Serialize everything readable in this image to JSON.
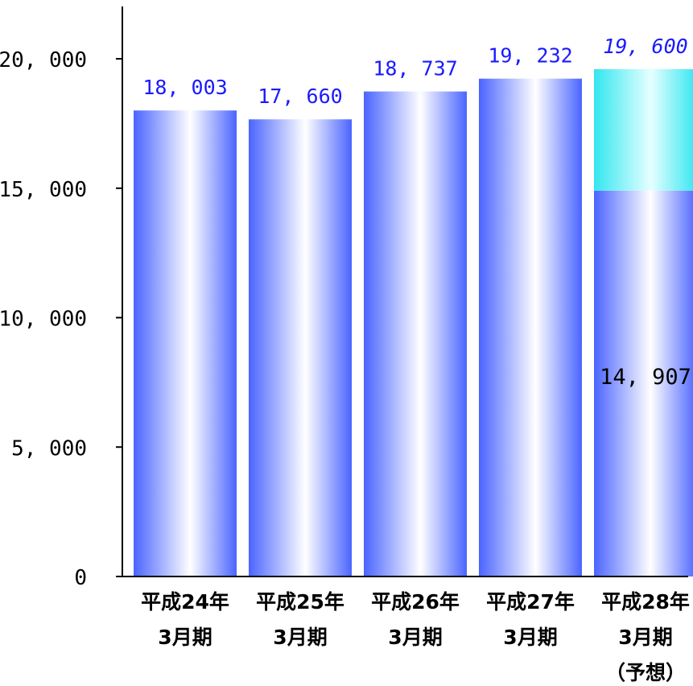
{
  "chart_data": {
    "type": "bar",
    "categories": [
      [
        "平成24年",
        "3月期"
      ],
      [
        "平成25年",
        "3月期"
      ],
      [
        "平成26年",
        "3月期"
      ],
      [
        "平成27年",
        "3月期"
      ],
      [
        "平成28年",
        "3月期",
        "（予想）"
      ]
    ],
    "values": [
      18003,
      17660,
      18737,
      19232,
      19600
    ],
    "value_labels": [
      "18, 003",
      "17, 660",
      "18, 737",
      "19, 232",
      "19, 600"
    ],
    "forecast_index": 4,
    "forecast_partial": {
      "value": 14907,
      "label": "14, 907"
    },
    "ylim": [
      0,
      20000
    ],
    "yticks": [
      0,
      5000,
      10000,
      15000,
      20000
    ],
    "ytick_labels": [
      "0",
      "5, 000",
      "10, 000",
      "15, 000",
      "20, 000"
    ],
    "title": "",
    "xlabel": "",
    "ylabel": "",
    "grid": false,
    "colors": {
      "bar_edge": "#4a64ff",
      "bar_center": "#ffffff",
      "forecast_top": "#33e6f0",
      "forecast_top_center": "#e6ffff",
      "value_label": "#1a1aff",
      "axis": "#000000"
    }
  }
}
